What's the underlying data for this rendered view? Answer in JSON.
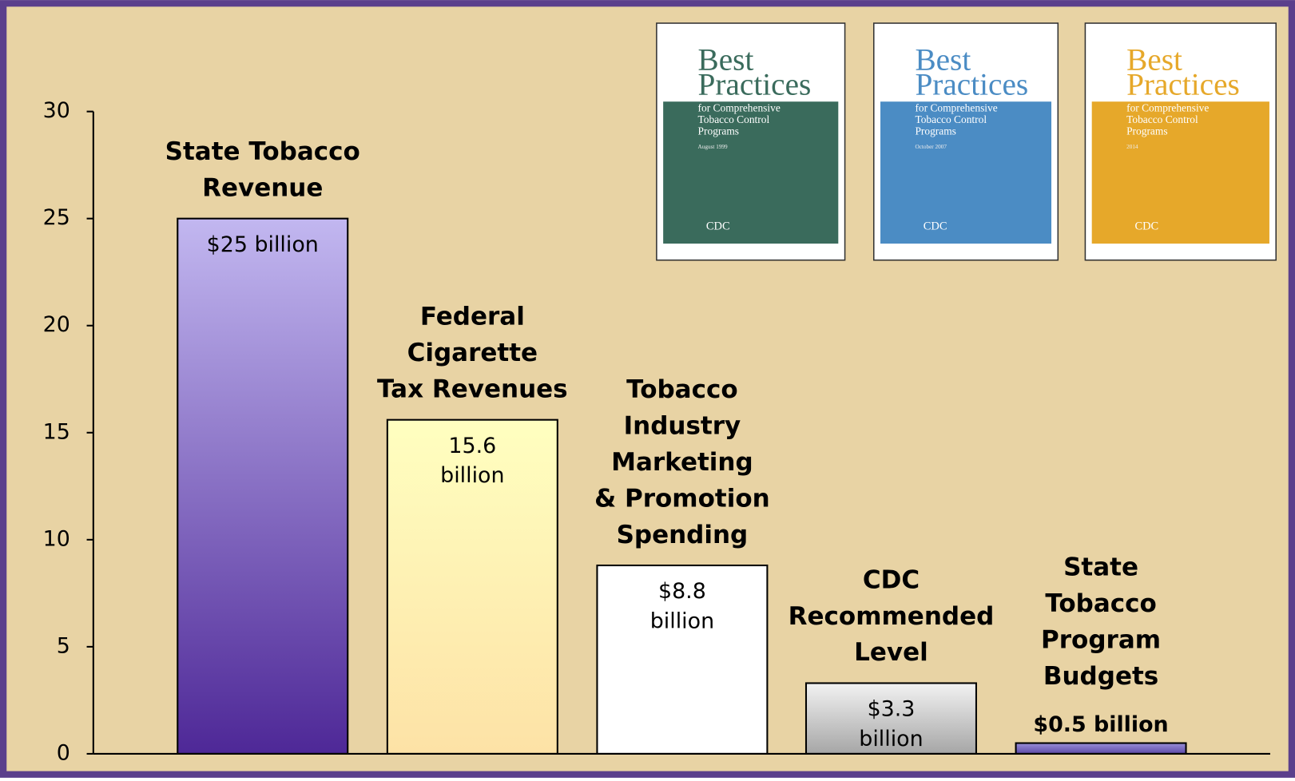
{
  "chart_data": {
    "type": "bar",
    "categories": [
      "State Tobacco\nRevenue",
      "Federal\nCigarette\nTax Revenues",
      "Tobacco\nIndustry\nMarketing\n& Promotion\nSpending",
      "CDC\nRecommended\nLevel",
      "State\nTobacco\nProgram\nBudgets"
    ],
    "values": [
      25,
      15.6,
      8.8,
      3.3,
      0.5
    ],
    "value_labels": [
      "$25 billion",
      "15.6\nbillion",
      "$8.8\nbillion",
      "$3.3\nbillion",
      "$0.5 billion"
    ],
    "ylim": [
      0,
      30
    ],
    "yticks": [
      0,
      5,
      10,
      15,
      20,
      25,
      30
    ]
  },
  "covers": [
    {
      "title": [
        "Best",
        "Practices"
      ],
      "subtitle": [
        "for Comprehensive",
        "Tobacco Control",
        "Programs"
      ],
      "date": "August 1999",
      "logo": "CDC",
      "color": "#3a6b5c"
    },
    {
      "title": [
        "Best",
        "Practices"
      ],
      "subtitle": [
        "for Comprehensive",
        "Tobacco Control",
        "Programs"
      ],
      "date": "October 2007",
      "logo": "CDC",
      "color": "#4b8cc4"
    },
    {
      "title": [
        "Best",
        "Practices"
      ],
      "subtitle": [
        "for Comprehensive",
        "Tobacco Control",
        "Programs"
      ],
      "date": "2014",
      "logo": "CDC",
      "color": "#e6a82a"
    }
  ]
}
